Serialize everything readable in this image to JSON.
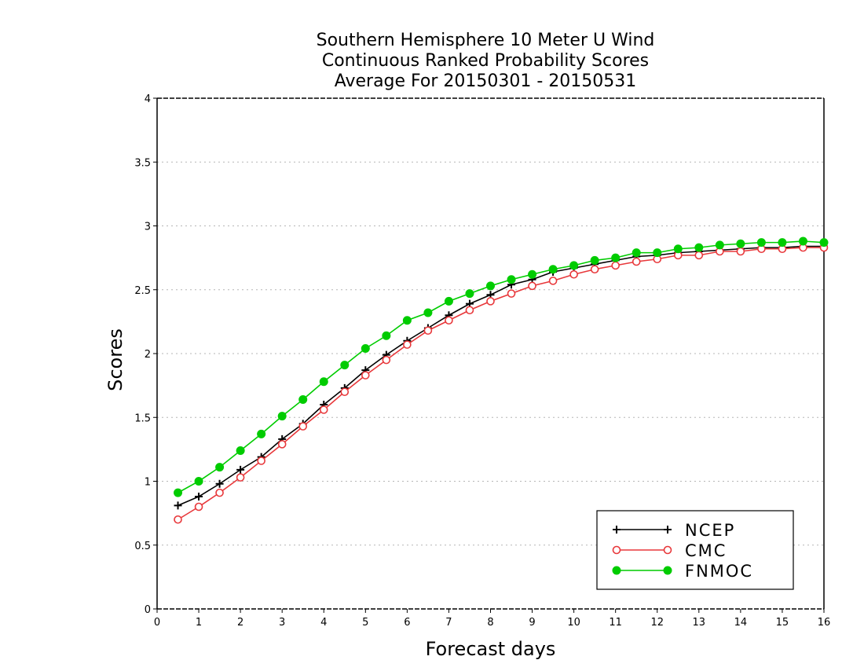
{
  "chart_data": {
    "type": "line",
    "title": [
      "Southern Hemisphere 10 Meter U Wind",
      "Continuous Ranked Probability Scores",
      "Average For 20150301 - 20150531"
    ],
    "xlabel": "Forecast days",
    "ylabel": "Scores",
    "xlim": [
      0,
      16
    ],
    "ylim": [
      0,
      4
    ],
    "xticks": [
      "0",
      "1",
      "2",
      "3",
      "4",
      "5",
      "6",
      "7",
      "8",
      "9",
      "10",
      "11",
      "12",
      "13",
      "14",
      "15",
      "16"
    ],
    "yticks": [
      "0",
      "0.5",
      "1",
      "1.5",
      "2",
      "2.5",
      "3",
      "3.5",
      "4"
    ],
    "grid": true,
    "legend_position": "bottom-right",
    "x": [
      0.5,
      1,
      1.5,
      2,
      2.5,
      3,
      3.5,
      4,
      4.5,
      5,
      5.5,
      6,
      6.5,
      7,
      7.5,
      8,
      8.5,
      9,
      9.5,
      10,
      10.5,
      11,
      11.5,
      12,
      12.5,
      13,
      13.5,
      14,
      14.5,
      15,
      15.5,
      16
    ],
    "series": [
      {
        "name": "NCEP",
        "color": "#000000",
        "marker": "plus",
        "values": [
          0.81,
          0.88,
          0.98,
          1.09,
          1.19,
          1.33,
          1.45,
          1.6,
          1.73,
          1.87,
          1.99,
          2.1,
          2.2,
          2.3,
          2.39,
          2.46,
          2.54,
          2.58,
          2.64,
          2.67,
          2.7,
          2.73,
          2.76,
          2.77,
          2.79,
          2.8,
          2.81,
          2.82,
          2.83,
          2.83,
          2.84,
          2.84
        ]
      },
      {
        "name": "CMC",
        "color": "#e8383b",
        "marker": "open-circle",
        "values": [
          0.7,
          0.8,
          0.91,
          1.03,
          1.16,
          1.29,
          1.43,
          1.56,
          1.7,
          1.83,
          1.95,
          2.07,
          2.18,
          2.26,
          2.34,
          2.41,
          2.47,
          2.53,
          2.57,
          2.62,
          2.66,
          2.69,
          2.72,
          2.74,
          2.77,
          2.77,
          2.8,
          2.8,
          2.82,
          2.82,
          2.83,
          2.83
        ]
      },
      {
        "name": "FNMOC",
        "color": "#00cc00",
        "marker": "filled-circle",
        "values": [
          0.91,
          1.0,
          1.11,
          1.24,
          1.37,
          1.51,
          1.64,
          1.78,
          1.91,
          2.04,
          2.14,
          2.26,
          2.32,
          2.41,
          2.47,
          2.53,
          2.58,
          2.62,
          2.66,
          2.69,
          2.73,
          2.75,
          2.79,
          2.79,
          2.82,
          2.83,
          2.85,
          2.86,
          2.87,
          2.87,
          2.88,
          2.87
        ]
      }
    ]
  }
}
